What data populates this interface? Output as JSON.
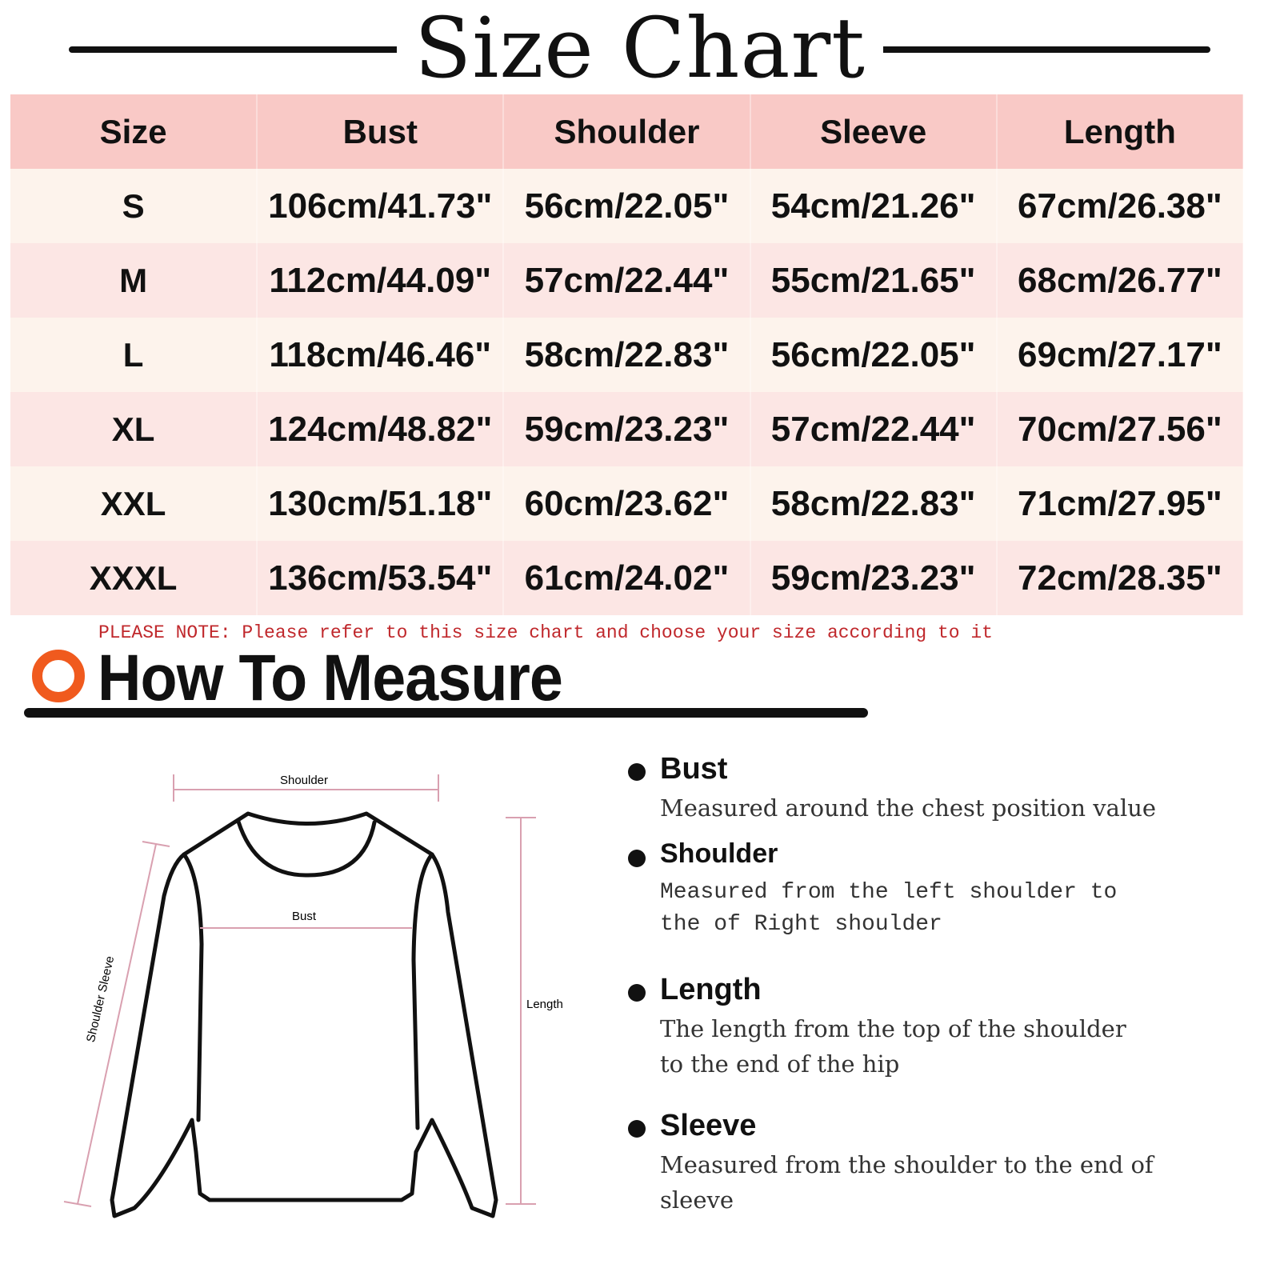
{
  "title": "Size Chart",
  "table": {
    "headers": [
      "Size",
      "Bust",
      "Shoulder",
      "Sleeve",
      "Length"
    ],
    "rows": [
      [
        "S",
        "106cm/41.73\"",
        "56cm/22.05\"",
        "54cm/21.26\"",
        "67cm/26.38\""
      ],
      [
        "M",
        "112cm/44.09\"",
        "57cm/22.44\"",
        "55cm/21.65\"",
        "68cm/26.77\""
      ],
      [
        "L",
        "118cm/46.46\"",
        "58cm/22.83\"",
        "56cm/22.05\"",
        "69cm/27.17\""
      ],
      [
        "XL",
        "124cm/48.82\"",
        "59cm/23.23\"",
        "57cm/22.44\"",
        "70cm/27.56\""
      ],
      [
        "XXL",
        "130cm/51.18\"",
        "60cm/23.62\"",
        "58cm/22.83\"",
        "71cm/27.95\""
      ],
      [
        "XXXL",
        "136cm/53.54\"",
        "61cm/24.02\"",
        "59cm/23.23\"",
        "72cm/28.35\""
      ]
    ]
  },
  "note": "PLEASE NOTE: Please refer to this size chart and choose your size according to it",
  "measure": {
    "title": "How To Measure",
    "icon": "orange-ring-icon",
    "diagram_labels": {
      "shoulder": "Shoulder",
      "bust": "Bust",
      "length": "Length",
      "sleeve": "Shoulder Sleeve"
    },
    "items": [
      {
        "heading": "Bust",
        "description": "Measured around the chest position value"
      },
      {
        "heading": "Shoulder",
        "description": "Measured from the left shoulder to the of Right shoulder"
      },
      {
        "heading": "Length",
        "description": "The length from the top of the shoulder to the end of the hip"
      },
      {
        "heading": "Sleeve",
        "description": "Measured from the shoulder to the end of sleeve"
      }
    ]
  },
  "colors": {
    "header": "#f9c9c6",
    "row_odd": "#fdf3ec",
    "row_even": "#fce6e4",
    "note": "#c0282c",
    "icon": "#f05a1e",
    "measure_lines": "#d9a0b0"
  }
}
